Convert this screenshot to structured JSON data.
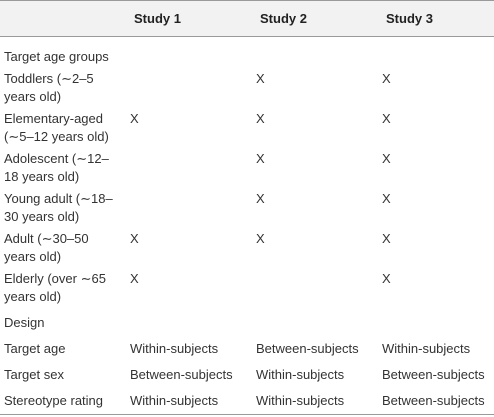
{
  "table": {
    "headers": [
      "",
      "Study 1",
      "Study 2",
      "Study 3"
    ],
    "rows": [
      {
        "label": "Target age groups",
        "s1": "",
        "s2": "",
        "s3": ""
      },
      {
        "label": "Toddlers (∼2–5 years old)",
        "s1": "",
        "s2": "X",
        "s3": "X"
      },
      {
        "label": "Elementary-aged (∼5–12 years old)",
        "s1": "X",
        "s2": "X",
        "s3": "X"
      },
      {
        "label": "Adolescent (∼12–18 years old)",
        "s1": "",
        "s2": "X",
        "s3": "X"
      },
      {
        "label": "Young adult (∼18–30 years old)",
        "s1": "",
        "s2": "X",
        "s3": "X"
      },
      {
        "label": "Adult (∼30–50 years old)",
        "s1": "X",
        "s2": "X",
        "s3": "X"
      },
      {
        "label": "Elderly (over ∼65 years old)",
        "s1": "X",
        "s2": "",
        "s3": "X"
      },
      {
        "label": "Design",
        "s1": "",
        "s2": "",
        "s3": ""
      },
      {
        "label": "Target age",
        "s1": "Within-subjects",
        "s2": "Between-subjects",
        "s3": "Within-subjects"
      },
      {
        "label": "Target sex",
        "s1": "Between-subjects",
        "s2": "Within-subjects",
        "s3": "Between-subjects"
      },
      {
        "label": "Stereotype rating",
        "s1": "Within-subjects",
        "s2": "Within-subjects",
        "s3": "Between-subjects"
      }
    ]
  }
}
